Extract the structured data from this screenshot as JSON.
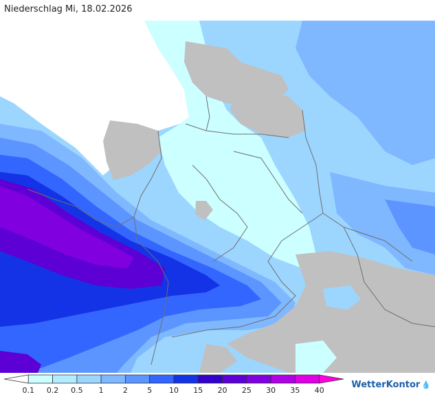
{
  "title": "Niederschlag Mi, 18.02.2026",
  "brand": "WetterKontor",
  "legend": {
    "labels": [
      "0.1",
      "0.2",
      "0.5",
      "1",
      "2",
      "5",
      "10",
      "15",
      "20",
      "25",
      "30",
      "35",
      "40"
    ],
    "colors": [
      "#ffffff",
      "#ccffff",
      "#b4ecff",
      "#9cd6ff",
      "#7fb8ff",
      "#5c95ff",
      "#3366ff",
      "#1433e6",
      "#3300cc",
      "#5c00d6",
      "#8000e0",
      "#b000e6",
      "#e000e6",
      "#ff00e0"
    ]
  },
  "colors": {
    "land_dry": "#c0c0c0",
    "sea": "#ffffff",
    "border": "#6e6e6e"
  }
}
